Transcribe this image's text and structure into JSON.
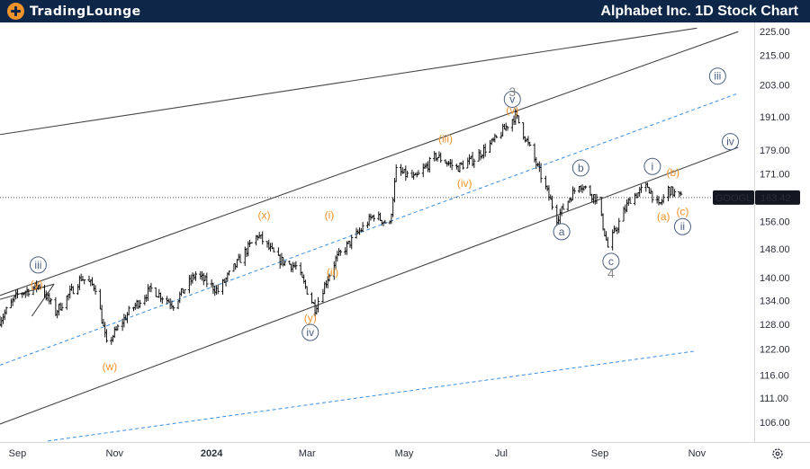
{
  "header": {
    "logo_part1": "TradingLounge",
    "logo_part2": "",
    "title": "Alphabet Inc. 1D Stock Chart"
  },
  "colors": {
    "header_bg": "#0e2748",
    "accent_orange": "#f0932b",
    "wave_blue": "#4a5f80",
    "channel_line": "#444444",
    "dashed_line": "#3b8fe0"
  },
  "chart_data": {
    "type": "ohlc",
    "symbol": "GOOGL",
    "last_price": "163.42",
    "y_scale": "log",
    "ylim": [
      102,
      229
    ],
    "xlim": [
      "2023-08-21",
      "2024-12-07"
    ],
    "grid": false,
    "y_ticks": [
      "225.00",
      "215.00",
      "203.00",
      "191.00",
      "179.00",
      "171.00",
      "163.42",
      "156.00",
      "148.00",
      "140.00",
      "134.00",
      "128.00",
      "122.00",
      "116.00",
      "111.00",
      "106.00"
    ],
    "x_ticks": [
      {
        "date": "2023-09-01",
        "label": "Sep",
        "bold": false
      },
      {
        "date": "2023-11-01",
        "label": "Nov",
        "bold": false
      },
      {
        "date": "2024-01-01",
        "label": "2024",
        "bold": true
      },
      {
        "date": "2024-03-01",
        "label": "Mar",
        "bold": false
      },
      {
        "date": "2024-05-01",
        "label": "May",
        "bold": false
      },
      {
        "date": "2024-07-01",
        "label": "Jul",
        "bold": false
      },
      {
        "date": "2024-09-01",
        "label": "Sep",
        "bold": false
      },
      {
        "date": "2024-11-01",
        "label": "Nov",
        "bold": false
      }
    ],
    "price_path": [
      [
        "2023-08-21",
        129.0
      ],
      [
        "2023-09-01",
        135.5
      ],
      [
        "2023-09-15",
        138.0
      ],
      [
        "2023-09-25",
        131.0
      ],
      [
        "2023-10-06",
        137.0
      ],
      [
        "2023-10-11",
        140.0
      ],
      [
        "2023-10-20",
        137.5
      ],
      [
        "2023-10-27",
        123.0
      ],
      [
        "2023-11-10",
        131.0
      ],
      [
        "2023-11-24",
        137.0
      ],
      [
        "2023-12-08",
        133.0
      ],
      [
        "2023-12-22",
        141.0
      ],
      [
        "2024-01-05",
        136.5
      ],
      [
        "2024-01-30",
        152.0
      ],
      [
        "2024-02-12",
        145.0
      ],
      [
        "2024-02-23",
        143.0
      ],
      [
        "2024-03-06",
        132.0
      ],
      [
        "2024-03-19",
        145.0
      ],
      [
        "2024-04-12",
        158.0
      ],
      [
        "2024-04-22",
        155.0
      ],
      [
        "2024-04-26",
        172.0
      ],
      [
        "2024-05-08",
        169.5
      ],
      [
        "2024-05-21",
        177.0
      ],
      [
        "2024-06-03",
        173.0
      ],
      [
        "2024-06-14",
        176.0
      ],
      [
        "2024-06-28",
        183.0
      ],
      [
        "2024-07-10",
        191.5
      ],
      [
        "2024-07-24",
        173.0
      ],
      [
        "2024-08-05",
        157.0
      ],
      [
        "2024-08-19",
        168.0
      ],
      [
        "2024-08-30",
        163.0
      ],
      [
        "2024-09-06",
        148.5
      ],
      [
        "2024-09-20",
        163.0
      ],
      [
        "2024-10-01",
        167.0
      ],
      [
        "2024-10-08",
        160.5
      ],
      [
        "2024-10-14",
        166.0
      ],
      [
        "2024-10-22",
        163.4
      ]
    ],
    "trend_lines": [
      {
        "name": "upper-outer-line",
        "from": [
          "2023-08-21",
          184.5
        ],
        "to": [
          "2024-11-01",
          226.5
        ],
        "style": "solid"
      },
      {
        "name": "upper-channel-line",
        "from": [
          "2023-08-21",
          135.3
        ],
        "to": [
          "2024-11-27",
          225.0
        ],
        "style": "solid"
      },
      {
        "name": "lower-channel-line",
        "from": [
          "2023-08-21",
          105.6
        ],
        "to": [
          "2024-11-27",
          180.0
        ],
        "style": "solid"
      },
      {
        "name": "left-wedge-upper-line",
        "from": [
          "2023-08-21",
          134.3
        ],
        "to": [
          "2023-09-24",
          138.3
        ],
        "style": "solid"
      },
      {
        "name": "left-wedge-lower-line",
        "from": [
          "2023-09-10",
          130.0
        ],
        "to": [
          "2023-09-24",
          138.3
        ],
        "style": "solid"
      },
      {
        "name": "mid-dashed-line",
        "from": [
          "2023-08-21",
          118.3
        ],
        "to": [
          "2024-11-27",
          199.8
        ],
        "style": "dashed"
      },
      {
        "name": "lower-dashed-line",
        "from": [
          "2023-09-20",
          102.2
        ],
        "to": [
          "2024-10-30",
          121.5
        ],
        "style": "dashed"
      }
    ],
    "wave_labels": [
      {
        "text": "iii",
        "date": "2023-09-14",
        "price": 143.5,
        "style": "circle-blue"
      },
      {
        "text": "(y)",
        "date": "2023-09-13",
        "price": 138.2,
        "style": "orange"
      },
      {
        "text": "(w)",
        "date": "2023-10-29",
        "price": 118.0,
        "style": "orange"
      },
      {
        "text": "(x)",
        "date": "2024-02-03",
        "price": 158.0,
        "style": "orange"
      },
      {
        "text": "(y)",
        "date": "2024-03-03",
        "price": 129.5,
        "style": "orange"
      },
      {
        "text": "iv",
        "date": "2024-03-03",
        "price": 126.0,
        "style": "circle-blue"
      },
      {
        "text": "(i)",
        "date": "2024-03-15",
        "price": 158.0,
        "style": "orange"
      },
      {
        "text": "(ii)",
        "date": "2024-03-17",
        "price": 141.5,
        "style": "orange"
      },
      {
        "text": "(iii)",
        "date": "2024-05-27",
        "price": 183.0,
        "style": "orange"
      },
      {
        "text": "(iv)",
        "date": "2024-06-08",
        "price": 168.0,
        "style": "orange"
      },
      {
        "text": "(v)",
        "date": "2024-07-08",
        "price": 193.5,
        "style": "orange"
      },
      {
        "text": "v",
        "date": "2024-07-08",
        "price": 197.5,
        "style": "circle-blue"
      },
      {
        "text": "3",
        "date": "2024-07-08",
        "price": 200.0,
        "style": "grey"
      },
      {
        "text": "a",
        "date": "2024-08-08",
        "price": 153.0,
        "style": "circle-blue"
      },
      {
        "text": "b",
        "date": "2024-08-20",
        "price": 173.0,
        "style": "circle-blue"
      },
      {
        "text": "c",
        "date": "2024-09-08",
        "price": 144.5,
        "style": "circle-blue"
      },
      {
        "text": "4",
        "date": "2024-09-08",
        "price": 141.0,
        "style": "grey"
      },
      {
        "text": "i",
        "date": "2024-10-04",
        "price": 173.5,
        "style": "circle-blue"
      },
      {
        "text": "(b)",
        "date": "2024-10-17",
        "price": 171.5,
        "style": "orange"
      },
      {
        "text": "(a)",
        "date": "2024-10-11",
        "price": 157.5,
        "style": "orange"
      },
      {
        "text": "(c)",
        "date": "2024-10-23",
        "price": 159.0,
        "style": "orange"
      },
      {
        "text": "ii",
        "date": "2024-10-23",
        "price": 154.5,
        "style": "circle-blue"
      },
      {
        "text": "iii",
        "date": "2024-11-14",
        "price": 206.5,
        "style": "circle-blue"
      },
      {
        "text": "iv",
        "date": "2024-11-22",
        "price": 182.0,
        "style": "circle-blue"
      }
    ]
  }
}
